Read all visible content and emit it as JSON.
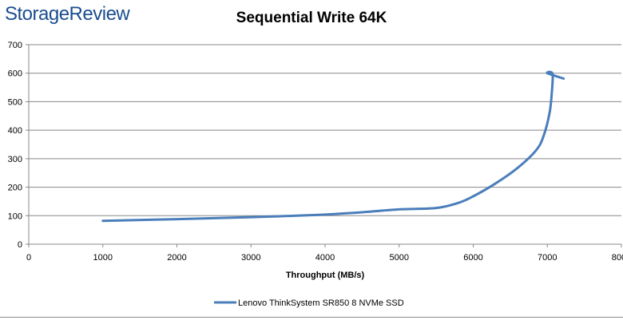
{
  "brand": {
    "text": "StorageReview"
  },
  "chart_data": {
    "type": "line",
    "title": "Sequential Write 64K",
    "xlabel": "Throughput (MB/s)",
    "ylabel": "",
    "xlim": [
      0,
      8000
    ],
    "ylim": [
      0,
      700
    ],
    "xticks": [
      "0",
      "1000",
      "2000",
      "3000",
      "4000",
      "5000",
      "6000",
      "7000",
      "8000"
    ],
    "yticks": [
      "0",
      "100",
      "200",
      "300",
      "400",
      "500",
      "600",
      "700"
    ],
    "grid": true,
    "legend_position": "bottom",
    "series": [
      {
        "name": "Lenovo ThinkSystem SR850 8 NVMe SSD",
        "color": "#4a7ebb",
        "points": [
          [
            1000,
            82
          ],
          [
            2000,
            88
          ],
          [
            3000,
            95
          ],
          [
            3500,
            99
          ],
          [
            4000,
            104
          ],
          [
            4500,
            112
          ],
          [
            5000,
            122
          ],
          [
            5500,
            127
          ],
          [
            5800,
            145
          ],
          [
            6000,
            168
          ],
          [
            6300,
            213
          ],
          [
            6600,
            268
          ],
          [
            6850,
            330
          ],
          [
            6950,
            380
          ],
          [
            7030,
            460
          ],
          [
            7060,
            530
          ],
          [
            7070,
            598
          ],
          [
            7000,
            600
          ],
          [
            7220,
            581
          ]
        ]
      }
    ]
  },
  "colors": {
    "line": "#4a7ebb",
    "grid": "#888888",
    "brand": "#1a4d8f"
  }
}
